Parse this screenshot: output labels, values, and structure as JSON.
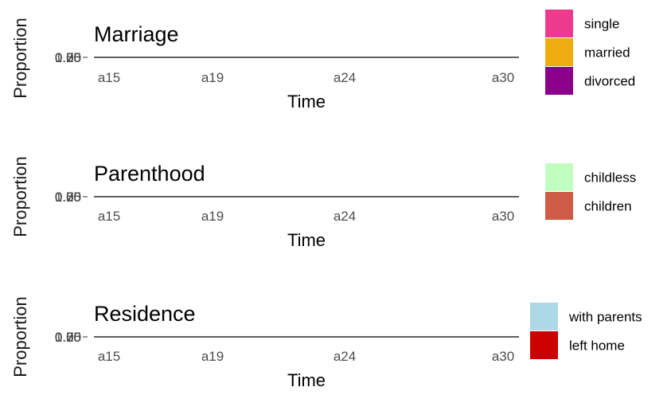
{
  "chart_data": [
    {
      "type": "area",
      "title": "Marriage",
      "xlabel": "Time",
      "ylabel": "Proportion",
      "categories": [
        "a15",
        "a19",
        "a24",
        "a30"
      ],
      "yticks": [
        "0.00",
        "0.25",
        "0.50",
        "0.75",
        "1.00"
      ],
      "series": [
        {
          "name": "single",
          "color": "#EE3A8C"
        },
        {
          "name": "married",
          "color": "#EEAD0E"
        },
        {
          "name": "divorced",
          "color": "#8B008B"
        }
      ]
    },
    {
      "type": "area",
      "title": "Parenthood",
      "xlabel": "Time",
      "ylabel": "Proportion",
      "categories": [
        "a15",
        "a19",
        "a24",
        "a30"
      ],
      "yticks": [
        "0.00",
        "0.25",
        "0.50",
        "0.75",
        "1.00"
      ],
      "series": [
        {
          "name": "childless",
          "color": "#C1FFC1"
        },
        {
          "name": "children",
          "color": "#CD5B45"
        }
      ]
    },
    {
      "type": "area",
      "title": "Residence",
      "xlabel": "Time",
      "ylabel": "Proportion",
      "categories": [
        "a15",
        "a19",
        "a24",
        "a30"
      ],
      "yticks": [
        "0.00",
        "0.25",
        "0.50",
        "0.75",
        "1.00"
      ],
      "series": [
        {
          "name": "with parents",
          "color": "#ADD8E6"
        },
        {
          "name": "left home",
          "color": "#CD0000"
        }
      ]
    }
  ]
}
